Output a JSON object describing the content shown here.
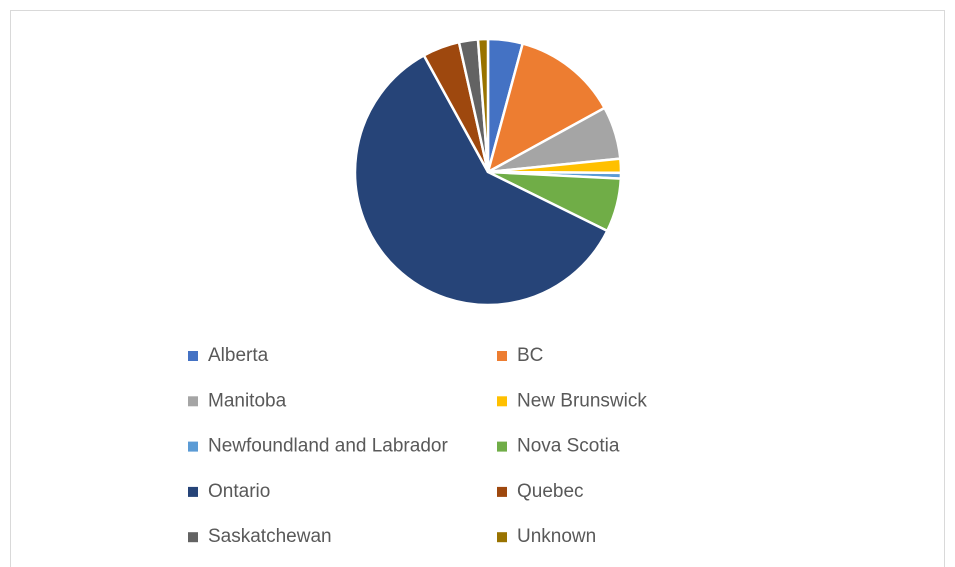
{
  "chart_data": {
    "type": "pie",
    "categories": [
      "Alberta",
      "BC",
      "Manitoba",
      "New Brunswick",
      "Newfoundland and Labrador",
      "Nova Scotia",
      "Ontario",
      "Quebec",
      "Saskatchewan",
      "Unknown"
    ],
    "values": [
      4.2,
      12.8,
      6.4,
      1.7,
      0.7,
      6.5,
      59.7,
      4.5,
      2.3,
      1.2
    ],
    "colors": [
      "#4472c4",
      "#ed7d31",
      "#a5a5a5",
      "#ffc000",
      "#5b9bd5",
      "#70ad47",
      "#264478",
      "#9e480e",
      "#636363",
      "#997300"
    ],
    "legend": "bottom"
  }
}
